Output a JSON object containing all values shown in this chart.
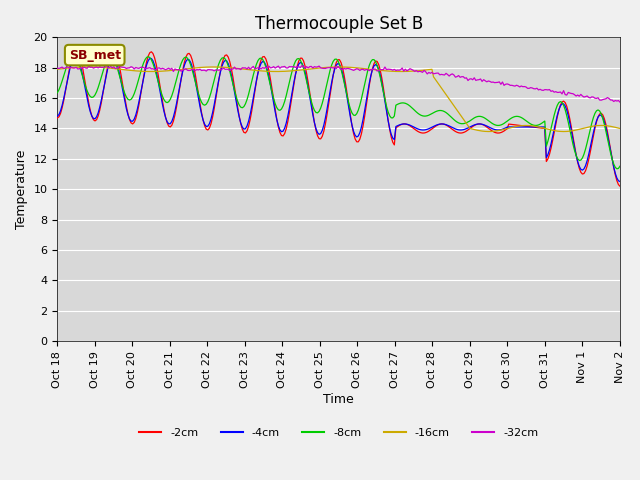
{
  "title": "Thermocouple Set B",
  "xlabel": "Time",
  "ylabel": "Temperature",
  "annotation": "SB_met",
  "xlabels": [
    "Oct 18",
    "Oct 19",
    "Oct 20",
    "Oct 21",
    "Oct 22",
    "Oct 23",
    "Oct 24",
    "Oct 25",
    "Oct 26",
    "Oct 27",
    "Oct 28",
    "Oct 29",
    "Oct 30",
    "Oct 31",
    "Nov 1",
    "Nov 2"
  ],
  "ylim": [
    0,
    20
  ],
  "yticks": [
    0,
    2,
    4,
    6,
    8,
    10,
    12,
    14,
    16,
    18,
    20
  ],
  "legend_labels": [
    "-2cm",
    "-4cm",
    "-8cm",
    "-16cm",
    "-32cm"
  ],
  "legend_colors": [
    "#ff0000",
    "#0000ff",
    "#00cc00",
    "#ccaa00",
    "#cc00cc"
  ],
  "line_colors": [
    "#ff0000",
    "#0000ff",
    "#00cc00",
    "#ccaa00",
    "#cc00cc"
  ],
  "bg_color": "#f0f0f0",
  "plot_bg_color": "#d8d8d8",
  "grid_color": "#ffffff",
  "title_fontsize": 12,
  "label_fontsize": 9,
  "tick_fontsize": 8
}
